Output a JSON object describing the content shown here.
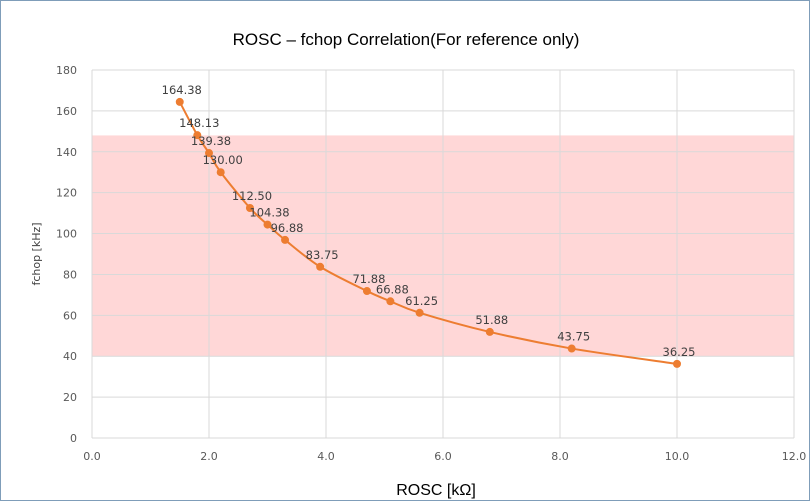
{
  "chart_data": {
    "type": "scatter",
    "title": "ROSC – fchop Correlation(For reference only)",
    "xlabel": "ROSC [kΩ]",
    "ylabel": "fchop [kHz]",
    "xlim": [
      0,
      12
    ],
    "ylim": [
      0,
      180
    ],
    "x_ticks": [
      0,
      2,
      4,
      6,
      8,
      10,
      12
    ],
    "x_tick_labels": [
      "0.0",
      "2.0",
      "4.0",
      "6.0",
      "8.0",
      "10.0",
      "12.0"
    ],
    "y_ticks": [
      0,
      20,
      40,
      60,
      80,
      100,
      120,
      140,
      160,
      180
    ],
    "y_tick_labels": [
      "0",
      "20",
      "40",
      "60",
      "80",
      "100",
      "120",
      "140",
      "160",
      "180"
    ],
    "grid": true,
    "shaded_band": {
      "y_from": 40,
      "y_to": 148,
      "color": "#ffd7d7"
    },
    "series": [
      {
        "color": "#ed7d31",
        "smooth": true,
        "markers": true,
        "x": [
          1.5,
          1.8,
          2.0,
          2.2,
          2.7,
          3.0,
          3.3,
          3.9,
          4.7,
          5.1,
          5.6,
          6.8,
          8.2,
          10.0
        ],
        "y": [
          164.38,
          148.13,
          139.38,
          130.0,
          112.5,
          104.38,
          96.88,
          83.75,
          71.88,
          66.88,
          61.25,
          51.88,
          43.75,
          36.25
        ],
        "labels": [
          "164.38",
          "148.13",
          "139.38",
          "130.00",
          "112.50",
          "104.38",
          "96.88",
          "83.75",
          "71.88",
          "66.88",
          "61.25",
          "51.88",
          "43.75",
          "36.25"
        ]
      }
    ]
  }
}
